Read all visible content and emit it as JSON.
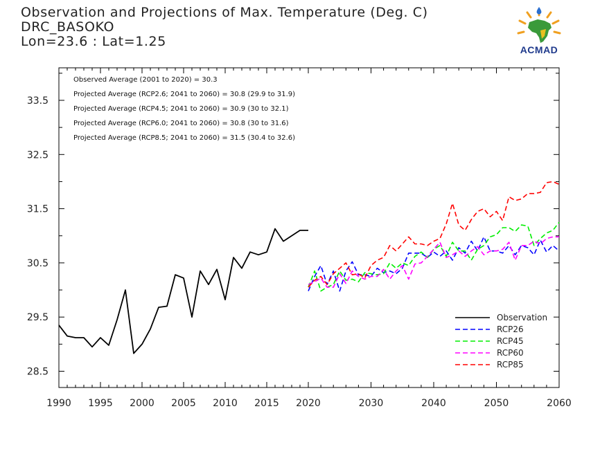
{
  "header": {
    "title_line1": "Observation and Projections of Max. Temperature (Deg. C)",
    "title_line2": "DRC_BASOKO",
    "title_line3": "Lon=23.6 : Lat=1.25"
  },
  "logo": {
    "text": "ACMAD",
    "icon": "africa-map-logo-icon"
  },
  "annotations": [
    "Observed Average (2001 to 2020) = 30.3",
    "Projected Average (RCP2.6; 2041 to 2060) = 30.8 (29.9 to 31.9)",
    "Projected Average (RCP4.5; 2041 to 2060) = 30.9 (30 to 32.1)",
    "Projected Average (RCP6.0; 2041 to 2060) = 30.8 (30 to 31.6)",
    "Projected Average (RCP8.5; 2041 to 2060) = 31.5 (30.4 to 32.6)"
  ],
  "chart_data": {
    "type": "line",
    "title": "Observation and Projections of Max. Temperature (Deg. C)",
    "ylim": [
      28.2,
      34.1
    ],
    "yticks": [
      28.5,
      29.5,
      30.5,
      31.5,
      32.5,
      33.5
    ],
    "ytick_labels": [
      "28.5",
      "29.5",
      "30.5",
      "31.5",
      "32.5",
      "33.5"
    ],
    "xticks": [
      {
        "value": 1990,
        "label": "1990"
      },
      {
        "value": 1995,
        "label": "1995"
      },
      {
        "value": 2000,
        "label": "2000"
      },
      {
        "value": 2005,
        "label": "2005"
      },
      {
        "value": 2010,
        "label": "2010"
      },
      {
        "value": 2015,
        "label": "2015"
      },
      {
        "value": 2020,
        "label": "2020"
      },
      {
        "value": 2030,
        "label": "2030"
      },
      {
        "value": 2040,
        "label": "2040"
      },
      {
        "value": 2050,
        "label": "2050"
      },
      {
        "value": 2060,
        "label": "2060"
      }
    ],
    "legend_position": "bottom-right",
    "series": [
      {
        "name": "Observation",
        "color": "#000000",
        "dashed": false,
        "x": [
          1990,
          1991,
          1992,
          1993,
          1994,
          1995,
          1996,
          1997,
          1998,
          1999,
          2000,
          2001,
          2002,
          2003,
          2004,
          2005,
          2006,
          2007,
          2008,
          2009,
          2010,
          2011,
          2012,
          2013,
          2014,
          2015,
          2016,
          2017,
          2018,
          2019,
          2020
        ],
        "y": [
          29.35,
          29.15,
          29.12,
          29.12,
          28.95,
          29.12,
          28.98,
          29.45,
          30.0,
          28.83,
          29.0,
          29.28,
          29.68,
          29.7,
          30.28,
          30.22,
          29.5,
          30.35,
          30.1,
          30.38,
          29.82,
          30.6,
          30.4,
          30.7,
          30.65,
          30.7,
          31.13,
          30.9,
          31.0,
          31.1,
          31.1
        ]
      },
      {
        "name": "RCP26",
        "color": "#0000ff",
        "dashed": true,
        "x": [
          2020,
          2021,
          2022,
          2023,
          2024,
          2025,
          2026,
          2027,
          2028,
          2029,
          2030,
          2031,
          2032,
          2033,
          2034,
          2035,
          2036,
          2037,
          2038,
          2039,
          2040,
          2041,
          2042,
          2043,
          2044,
          2045,
          2046,
          2047,
          2048,
          2049,
          2050,
          2051,
          2052,
          2053,
          2054,
          2055,
          2056,
          2057,
          2058,
          2059,
          2060
        ],
        "y": [
          29.98,
          30.25,
          30.45,
          30.1,
          30.35,
          29.98,
          30.35,
          30.52,
          30.28,
          30.28,
          30.25,
          30.4,
          30.32,
          30.35,
          30.3,
          30.4,
          30.68,
          30.68,
          30.68,
          30.6,
          30.7,
          30.62,
          30.72,
          30.55,
          30.78,
          30.68,
          30.9,
          30.72,
          30.98,
          30.72,
          30.72,
          30.68,
          30.82,
          30.65,
          30.82,
          30.78,
          30.65,
          30.92,
          30.7,
          30.82,
          30.72
        ]
      },
      {
        "name": "RCP45",
        "color": "#00ee00",
        "dashed": true,
        "x": [
          2020,
          2021,
          2022,
          2023,
          2024,
          2025,
          2026,
          2027,
          2028,
          2029,
          2030,
          2031,
          2032,
          2033,
          2034,
          2035,
          2036,
          2037,
          2038,
          2039,
          2040,
          2041,
          2042,
          2043,
          2044,
          2045,
          2046,
          2047,
          2048,
          2049,
          2050,
          2051,
          2052,
          2053,
          2054,
          2055,
          2056,
          2057,
          2058,
          2059,
          2060
        ],
        "y": [
          30.05,
          30.35,
          29.98,
          30.05,
          30.1,
          30.35,
          30.18,
          30.2,
          30.15,
          30.32,
          30.3,
          30.28,
          30.3,
          30.5,
          30.4,
          30.5,
          30.45,
          30.62,
          30.7,
          30.6,
          30.75,
          30.82,
          30.62,
          30.88,
          30.72,
          30.72,
          30.55,
          30.75,
          30.82,
          30.98,
          31.02,
          31.15,
          31.15,
          31.08,
          31.2,
          31.18,
          30.82,
          30.95,
          31.05,
          31.1,
          31.25
        ]
      },
      {
        "name": "RCP60",
        "color": "#ff00ff",
        "dashed": true,
        "x": [
          2020,
          2021,
          2022,
          2023,
          2024,
          2025,
          2026,
          2027,
          2028,
          2029,
          2030,
          2031,
          2032,
          2033,
          2034,
          2035,
          2036,
          2037,
          2038,
          2039,
          2040,
          2041,
          2042,
          2043,
          2044,
          2045,
          2046,
          2047,
          2048,
          2049,
          2050,
          2051,
          2052,
          2053,
          2054,
          2055,
          2056,
          2057,
          2058,
          2059,
          2060
        ],
        "y": [
          30.1,
          30.15,
          30.22,
          30.05,
          30.05,
          30.3,
          30.12,
          30.35,
          30.25,
          30.2,
          30.25,
          30.25,
          30.38,
          30.2,
          30.35,
          30.45,
          30.2,
          30.48,
          30.5,
          30.62,
          30.75,
          30.88,
          30.6,
          30.65,
          30.72,
          30.62,
          30.72,
          30.8,
          30.65,
          30.72,
          30.72,
          30.75,
          30.88,
          30.55,
          30.82,
          30.82,
          30.9,
          30.85,
          30.95,
          30.98,
          30.98
        ]
      },
      {
        "name": "RCP85",
        "color": "#ff0000",
        "dashed": true,
        "x": [
          2020,
          2021,
          2022,
          2023,
          2024,
          2025,
          2026,
          2027,
          2028,
          2029,
          2030,
          2031,
          2032,
          2033,
          2034,
          2035,
          2036,
          2037,
          2038,
          2039,
          2040,
          2041,
          2042,
          2043,
          2044,
          2045,
          2046,
          2047,
          2048,
          2049,
          2050,
          2051,
          2052,
          2053,
          2054,
          2055,
          2056,
          2057,
          2058,
          2059,
          2060
        ],
        "y": [
          30.05,
          30.18,
          30.25,
          30.1,
          30.3,
          30.4,
          30.5,
          30.28,
          30.3,
          30.22,
          30.45,
          30.55,
          30.6,
          30.82,
          30.72,
          30.85,
          30.98,
          30.85,
          30.85,
          30.82,
          30.9,
          30.95,
          31.22,
          31.6,
          31.2,
          31.1,
          31.3,
          31.45,
          31.5,
          31.35,
          31.45,
          31.28,
          31.72,
          31.65,
          31.68,
          31.78,
          31.78,
          31.8,
          31.98,
          32.0,
          31.95
        ]
      }
    ]
  }
}
